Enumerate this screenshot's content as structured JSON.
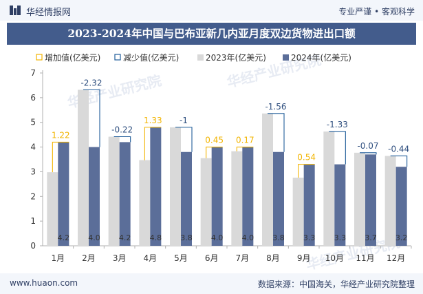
{
  "header": {
    "brand": "华经情报网",
    "slogan": "专业严谨 • 客观科学"
  },
  "footer": {
    "url": "www.huaon.com",
    "source": "数据来源：中国海关，华经产业研究院整理"
  },
  "watermark": "华经产业研究院",
  "colors": {
    "bar_2023": "#d9d9d9",
    "bar_2024": "#5b6e99",
    "increase": "#f2b400",
    "decrease": "#1f5c99",
    "title_bg": "#435c8c"
  },
  "chart_data": {
    "type": "bar",
    "title": "2023-2024年中国与巴布亚新几内亚月度双边货物进出口额",
    "categories": [
      "1月",
      "2月",
      "3月",
      "4月",
      "5月",
      "6月",
      "7月",
      "8月",
      "9月",
      "10月",
      "11月",
      "12月"
    ],
    "series": [
      {
        "name": "2023年(亿美元)",
        "values": [
          2.98,
          6.32,
          4.42,
          3.47,
          4.8,
          3.55,
          3.83,
          5.36,
          2.76,
          4.63,
          3.77,
          3.64
        ]
      },
      {
        "name": "2024年(亿美元)",
        "values": [
          4.2,
          4.0,
          4.2,
          4.8,
          3.8,
          4.0,
          4.0,
          3.8,
          3.3,
          3.3,
          3.7,
          3.2
        ]
      }
    ],
    "change": [
      1.22,
      -2.32,
      -0.22,
      1.33,
      -1,
      0.45,
      0.17,
      -1.56,
      0.54,
      -1.33,
      -0.07,
      -0.44
    ],
    "legend": [
      "增加值(亿美元)",
      "减少值(亿美元)",
      "2023年(亿美元)",
      "2024年(亿美元)"
    ],
    "ylim": [
      0,
      7
    ],
    "yticks": [
      0,
      1,
      2,
      3,
      4,
      5,
      6,
      7
    ],
    "grid": false,
    "legend_position": "top-left"
  }
}
